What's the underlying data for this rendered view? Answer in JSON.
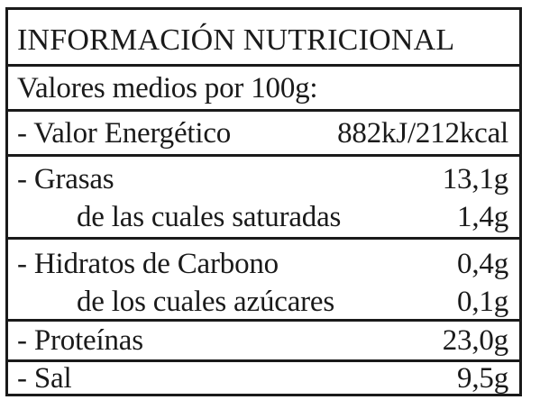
{
  "title": "INFORMACIÓN NUTRICIONAL",
  "subtitle": "Valores medios por 100g:",
  "rows": [
    {
      "label": "- Valor Energético",
      "value": "882kJ/212kcal"
    },
    {
      "label": "- Grasas",
      "value": "13,1g"
    },
    {
      "label": "de las cuales saturadas",
      "value": "1,4g"
    },
    {
      "label": "- Hidratos de Carbono",
      "value": "0,4g"
    },
    {
      "label": "de los cuales azúcares",
      "value": "0,1g"
    },
    {
      "label": "- Proteínas",
      "value": "23,0g"
    },
    {
      "label": "- Sal",
      "value": "9,5g"
    }
  ]
}
